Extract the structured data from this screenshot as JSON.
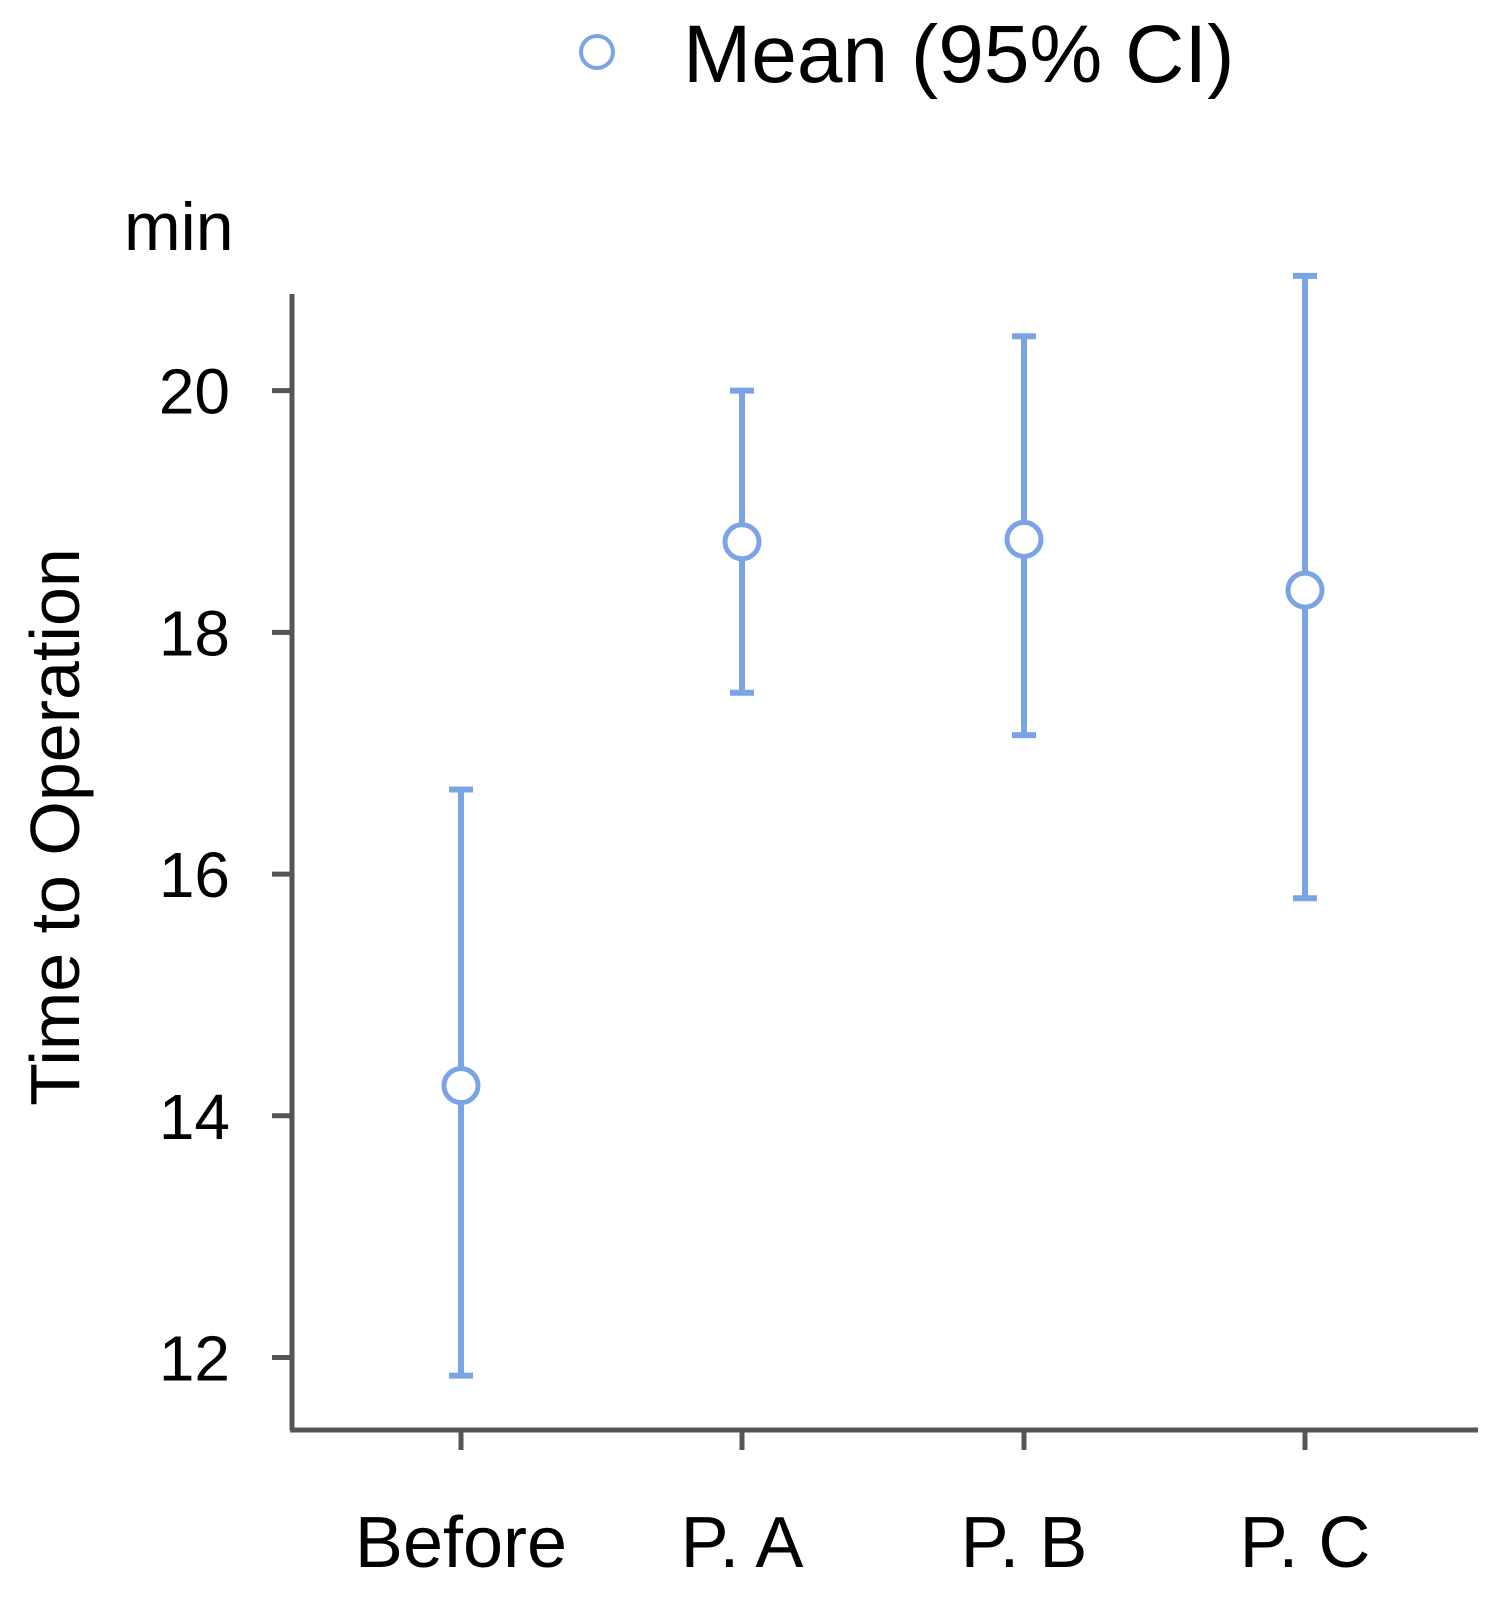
{
  "chart_data": {
    "type": "errorbar",
    "legend": {
      "marker": "open-circle",
      "label": "Mean (95% CI)",
      "placement": "top-center"
    },
    "unit_label": "min",
    "ylabel": "Time to Operation",
    "xlabel": "",
    "categories": [
      "Before",
      "P. A",
      "P. B",
      "P. C"
    ],
    "series": [
      {
        "name": "Mean (95% CI)",
        "mean": [
          14.25,
          18.75,
          18.77,
          18.35
        ],
        "ci_low": [
          11.85,
          17.5,
          17.15,
          15.8
        ],
        "ci_high": [
          16.7,
          20.0,
          20.45,
          20.95
        ]
      }
    ],
    "yticks": [
      "12",
      "14",
      "16",
      "18",
      "20"
    ],
    "ylim": [
      11.4,
      20.8
    ],
    "grid": false,
    "colors": {
      "series": "#7ba4e4",
      "axis": "#555555",
      "text": "#000000"
    }
  }
}
